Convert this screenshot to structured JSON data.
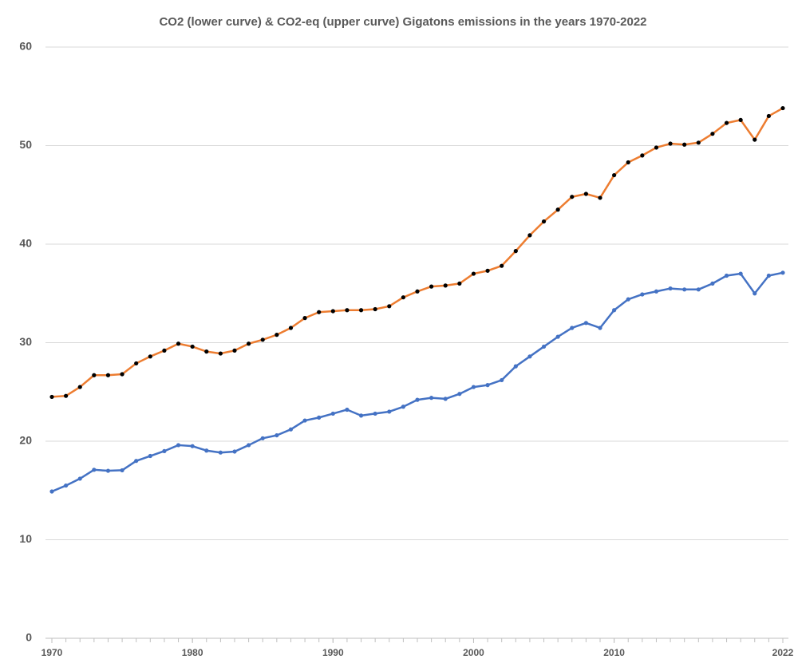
{
  "chart_data": {
    "type": "line",
    "title": "CO2 (lower curve) & CO2-eq (upper curve) Gigatons emissions in the years 1970-2022",
    "x": [
      1970,
      1971,
      1972,
      1973,
      1974,
      1975,
      1976,
      1977,
      1978,
      1979,
      1980,
      1981,
      1982,
      1983,
      1984,
      1985,
      1986,
      1987,
      1988,
      1989,
      1990,
      1991,
      1992,
      1993,
      1994,
      1995,
      1996,
      1997,
      1998,
      1999,
      2000,
      2001,
      2002,
      2003,
      2004,
      2005,
      2006,
      2007,
      2008,
      2009,
      2010,
      2011,
      2012,
      2013,
      2014,
      2015,
      2016,
      2017,
      2018,
      2019,
      2020,
      2021,
      2022
    ],
    "series": [
      {
        "color": "#4472c4",
        "marker_color": "#4472c4",
        "values": [
          14.9,
          15.5,
          16.2,
          17.1,
          17.0,
          17.05,
          18.0,
          18.5,
          19.0,
          19.6,
          19.5,
          19.05,
          18.85,
          18.95,
          19.6,
          20.3,
          20.6,
          21.2,
          22.1,
          22.4,
          22.8,
          23.2,
          22.6,
          22.8,
          23.0,
          23.5,
          24.2,
          24.4,
          24.3,
          24.8,
          25.5,
          25.7,
          26.2,
          27.6,
          28.6,
          29.6,
          30.6,
          31.5,
          32.0,
          31.5,
          33.3,
          34.4,
          34.9,
          35.2,
          35.5,
          35.4,
          35.4,
          36.0,
          36.8,
          37.0,
          35.0,
          36.8,
          37.1
        ]
      },
      {
        "color": "#ed7d31",
        "marker_color": "#000000",
        "values": [
          24.5,
          24.6,
          25.5,
          26.7,
          26.7,
          26.8,
          27.9,
          28.6,
          29.2,
          29.9,
          29.6,
          29.1,
          28.9,
          29.2,
          29.9,
          30.3,
          30.8,
          31.5,
          32.5,
          33.1,
          33.2,
          33.3,
          33.3,
          33.4,
          33.7,
          34.6,
          35.2,
          35.7,
          35.8,
          36.0,
          37.0,
          37.3,
          37.8,
          39.3,
          40.9,
          42.3,
          43.5,
          44.8,
          45.1,
          44.7,
          47.0,
          48.3,
          49.0,
          49.8,
          50.2,
          50.1,
          50.3,
          51.2,
          52.3,
          52.6,
          50.6,
          53.0,
          53.8
        ]
      }
    ],
    "xlim": [
      1970,
      2022
    ],
    "xticks": [
      1970,
      1980,
      1990,
      2000,
      2010,
      2022
    ],
    "ylim": [
      0,
      60
    ],
    "yticks": [
      0,
      10,
      20,
      30,
      40,
      50,
      60
    ],
    "grid": true
  }
}
